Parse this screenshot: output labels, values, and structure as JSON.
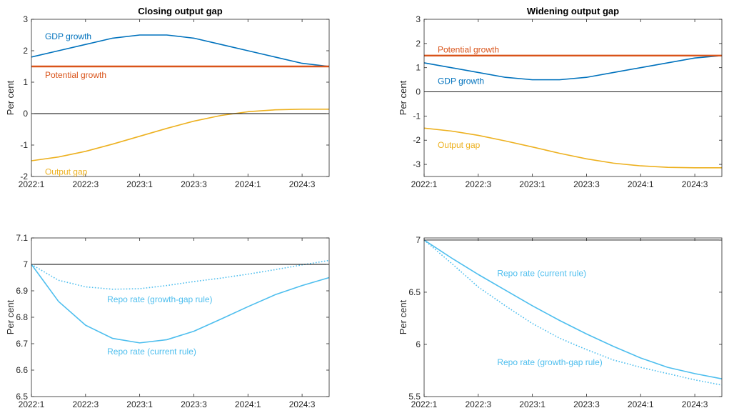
{
  "figure": {
    "background": "#ffffff"
  },
  "chart_data": [
    {
      "type": "line",
      "title": "Closing output gap",
      "xlabel": "",
      "ylabel": "Per cent",
      "x_tick_labels": [
        "2022:1",
        "2022:3",
        "2023:1",
        "2023:3",
        "2024:1",
        "2024:3"
      ],
      "x_tick_index": [
        0,
        2,
        4,
        6,
        8,
        10
      ],
      "x_index_range": [
        0,
        11
      ],
      "ylim": [
        -2,
        3
      ],
      "y_ticks": [
        -2,
        -1,
        0,
        1,
        2,
        3
      ],
      "y_tick_labels": [
        "-2",
        "-1",
        "0",
        "1",
        "2",
        "3"
      ],
      "reference_line": {
        "y": 0,
        "color": "#000000"
      },
      "series": [
        {
          "name": "GDP growth",
          "color": "#0072BD",
          "style": "solid",
          "width": 1.6,
          "x": [
            0,
            1,
            2,
            3,
            4,
            5,
            6,
            7,
            8,
            9,
            10,
            11
          ],
          "y": [
            1.8,
            2.0,
            2.2,
            2.4,
            2.5,
            2.5,
            2.4,
            2.2,
            2.0,
            1.8,
            1.6,
            1.5
          ]
        },
        {
          "name": "Potential growth",
          "color": "#D95319",
          "style": "solid",
          "width": 2.4,
          "x": [
            0,
            11
          ],
          "y": [
            1.5,
            1.5
          ]
        },
        {
          "name": "Output gap",
          "color": "#EDB120",
          "style": "solid",
          "width": 1.6,
          "x": [
            0,
            1,
            2,
            3,
            4,
            5,
            6,
            7,
            8,
            9,
            10,
            11
          ],
          "y": [
            -1.5,
            -1.38,
            -1.2,
            -0.97,
            -0.72,
            -0.47,
            -0.24,
            -0.06,
            0.06,
            0.12,
            0.14,
            0.14
          ]
        }
      ],
      "annotations": [
        {
          "text": "GDP growth",
          "color": "#0072BD",
          "x": 0.5,
          "y": 2.45
        },
        {
          "text": "Potential growth",
          "color": "#D95319",
          "x": 0.5,
          "y": 1.23
        },
        {
          "text": "Output gap",
          "color": "#EDB120",
          "x": 0.5,
          "y": -1.85
        }
      ]
    },
    {
      "type": "line",
      "title": "Widening output gap",
      "xlabel": "",
      "ylabel": "Per cent",
      "x_tick_labels": [
        "2022:1",
        "2022:3",
        "2023:1",
        "2023:3",
        "2024:1",
        "2024:3"
      ],
      "x_tick_index": [
        0,
        2,
        4,
        6,
        8,
        10
      ],
      "x_index_range": [
        0,
        11
      ],
      "ylim": [
        -3.5,
        3
      ],
      "y_ticks": [
        -3,
        -2,
        -1,
        0,
        1,
        2,
        3
      ],
      "y_tick_labels": [
        "-3",
        "-2",
        "-1",
        "0",
        "1",
        "2",
        "3"
      ],
      "reference_line": {
        "y": 0,
        "color": "#000000"
      },
      "series": [
        {
          "name": "GDP growth",
          "color": "#0072BD",
          "style": "solid",
          "width": 1.6,
          "x": [
            0,
            1,
            2,
            3,
            4,
            5,
            6,
            7,
            8,
            9,
            10,
            11
          ],
          "y": [
            1.2,
            1.0,
            0.8,
            0.6,
            0.5,
            0.5,
            0.6,
            0.8,
            1.0,
            1.2,
            1.4,
            1.5
          ]
        },
        {
          "name": "Potential growth",
          "color": "#D95319",
          "style": "solid",
          "width": 2.4,
          "x": [
            0,
            11
          ],
          "y": [
            1.5,
            1.5
          ]
        },
        {
          "name": "Output gap",
          "color": "#EDB120",
          "style": "solid",
          "width": 1.6,
          "x": [
            0,
            1,
            2,
            3,
            4,
            5,
            6,
            7,
            8,
            9,
            10,
            11
          ],
          "y": [
            -1.5,
            -1.62,
            -1.8,
            -2.03,
            -2.28,
            -2.54,
            -2.77,
            -2.95,
            -3.06,
            -3.12,
            -3.14,
            -3.14
          ]
        }
      ],
      "annotations": [
        {
          "text": "Potential growth",
          "color": "#D95319",
          "x": 0.5,
          "y": 1.75
        },
        {
          "text": "GDP growth",
          "color": "#0072BD",
          "x": 0.5,
          "y": 0.45
        },
        {
          "text": "Output gap",
          "color": "#EDB120",
          "x": 0.5,
          "y": -2.2
        }
      ]
    },
    {
      "type": "line",
      "title": "",
      "xlabel": "",
      "ylabel": "Per cent",
      "x_tick_labels": [
        "2022:1",
        "2022:3",
        "2023:1",
        "2023:3",
        "2024:1",
        "2024:3"
      ],
      "x_tick_index": [
        0,
        2,
        4,
        6,
        8,
        10
      ],
      "x_index_range": [
        0,
        11
      ],
      "ylim": [
        6.5,
        7.1
      ],
      "y_ticks": [
        6.5,
        6.6,
        6.7,
        6.8,
        6.9,
        7,
        7.1
      ],
      "y_tick_labels": [
        "6.5",
        "6.6",
        "6.7",
        "6.8",
        "6.9",
        "7",
        "7.1"
      ],
      "reference_line": {
        "y": 7,
        "color": "#000000"
      },
      "series": [
        {
          "name": "Repo rate (current rule)",
          "color": "#4DBEEE",
          "style": "solid",
          "width": 1.6,
          "x": [
            0,
            1,
            2,
            3,
            4,
            5,
            6,
            7,
            8,
            9,
            10,
            11
          ],
          "y": [
            7.0,
            6.86,
            6.77,
            6.72,
            6.703,
            6.715,
            6.747,
            6.793,
            6.84,
            6.885,
            6.92,
            6.95
          ]
        },
        {
          "name": "Repo rate (growth-gap rule)",
          "color": "#4DBEEE",
          "style": "dotted",
          "width": 1.6,
          "x": [
            0,
            1,
            2,
            3,
            4,
            5,
            6,
            7,
            8,
            9,
            10,
            11
          ],
          "y": [
            7.0,
            6.94,
            6.915,
            6.906,
            6.908,
            6.92,
            6.935,
            6.948,
            6.963,
            6.98,
            6.998,
            7.015
          ]
        }
      ],
      "annotations": [
        {
          "text": "Repo rate (growth-gap rule)",
          "color": "#4DBEEE",
          "x": 2.8,
          "y": 6.868
        },
        {
          "text": "Repo rate (current rule)",
          "color": "#4DBEEE",
          "x": 2.8,
          "y": 6.67
        }
      ]
    },
    {
      "type": "line",
      "title": "",
      "xlabel": "",
      "ylabel": "Per cent",
      "x_tick_labels": [
        "2022:1",
        "2022:3",
        "2023:1",
        "2023:3",
        "2024:1",
        "2024:3"
      ],
      "x_tick_index": [
        0,
        2,
        4,
        6,
        8,
        10
      ],
      "x_index_range": [
        0,
        11
      ],
      "ylim": [
        5.5,
        7.02
      ],
      "y_ticks": [
        5.5,
        6,
        6.5,
        7
      ],
      "y_tick_labels": [
        "5.5",
        "6",
        "6.5",
        "7"
      ],
      "reference_line": {
        "y": 7,
        "color": "#000000"
      },
      "series": [
        {
          "name": "Repo rate (current rule)",
          "color": "#4DBEEE",
          "style": "solid",
          "width": 1.6,
          "x": [
            0,
            1,
            2,
            3,
            4,
            5,
            6,
            7,
            8,
            9,
            10,
            11
          ],
          "y": [
            7.0,
            6.83,
            6.67,
            6.52,
            6.37,
            6.23,
            6.1,
            5.98,
            5.87,
            5.78,
            5.72,
            5.67
          ]
        },
        {
          "name": "Repo rate (growth-gap rule)",
          "color": "#4DBEEE",
          "style": "dotted",
          "width": 1.6,
          "x": [
            0,
            1,
            2,
            3,
            4,
            5,
            6,
            7,
            8,
            9,
            10,
            11
          ],
          "y": [
            7.0,
            6.78,
            6.55,
            6.37,
            6.2,
            6.06,
            5.95,
            5.85,
            5.78,
            5.72,
            5.66,
            5.61
          ]
        }
      ],
      "annotations": [
        {
          "text": "Repo rate (current rule)",
          "color": "#4DBEEE",
          "x": 2.7,
          "y": 6.68
        },
        {
          "text": "Repo rate (growth-gap rule)",
          "color": "#4DBEEE",
          "x": 2.7,
          "y": 5.83
        }
      ]
    }
  ]
}
